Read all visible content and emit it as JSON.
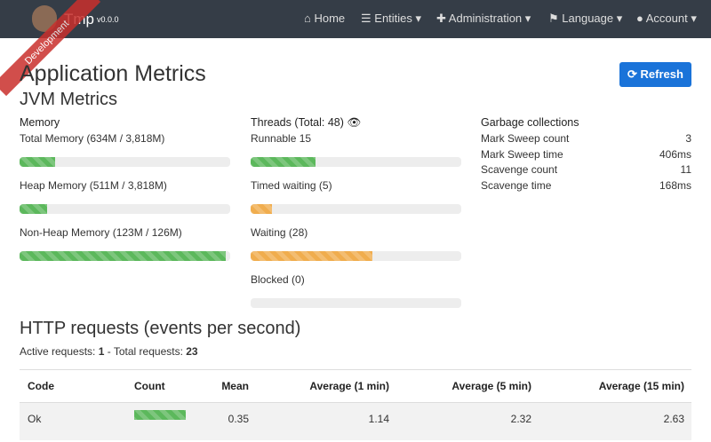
{
  "navbar": {
    "brand": "Tmp",
    "version": "v0.0.0",
    "ribbon": "Development",
    "items": [
      "Home",
      "Entities",
      "Administration",
      "Language",
      "Account"
    ]
  },
  "header": {
    "title": "Application Metrics",
    "refresh": "Refresh"
  },
  "jvm": {
    "title": "JVM Metrics",
    "memory": {
      "title": "Memory",
      "items": [
        {
          "label": "Total Memory (634M / 3,818M)",
          "bar": 17
        },
        {
          "label": "Heap Memory (511M / 3,818M)",
          "bar": 13
        },
        {
          "label": "Non-Heap Memory (123M / 126M)",
          "bar": 98
        }
      ]
    },
    "threads": {
      "title": "Threads",
      "total": "(Total: 48)",
      "items": [
        {
          "label": "Runnable 15",
          "bar": 31
        },
        {
          "label": "Timed waiting (5)",
          "bar": 10
        },
        {
          "label": "Waiting (28)",
          "bar": 58
        },
        {
          "label": "Blocked (0)",
          "bar": 0
        }
      ]
    },
    "gc": {
      "title": "Garbage collections",
      "rows": [
        [
          "Mark Sweep count",
          "3"
        ],
        [
          "Mark Sweep time",
          "406ms"
        ],
        [
          "Scavenge count",
          "11"
        ],
        [
          "Scavenge time",
          "168ms"
        ]
      ]
    }
  },
  "http": {
    "title": "HTTP requests (events per second)",
    "active_label": "Active requests:",
    "active": "1",
    "total_label": "- Total requests:",
    "total": "23",
    "table": {
      "header": [
        "Code",
        "Count",
        "Mean",
        "Average (1 min)",
        "Average (5 min)",
        "Average (15 min)"
      ],
      "rows": [
        {
          "code": "Ok",
          "count_bar": 100,
          "cells": [
            "0.35",
            "1.14",
            "2.32",
            "2.63"
          ]
        }
      ]
    }
  }
}
